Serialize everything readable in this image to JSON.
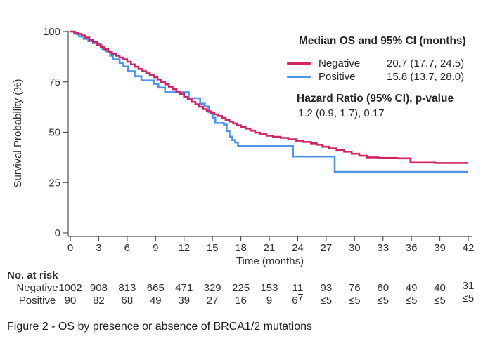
{
  "figure": {
    "caption": "Figure 2 - OS by presence or absence of BRCA1/2 mutations"
  },
  "legend": {
    "title": "Median OS and 95% CI (months)",
    "rows": [
      {
        "label": "Negative",
        "value": "20.7 (17.7, 24.5)",
        "color": "#D02466"
      },
      {
        "label": "Positive",
        "value": "15.8 (13.7, 28.0)",
        "color": "#4D95E9"
      }
    ],
    "hr_title": "Hazard Ratio (95% CI), p-value",
    "hr_value": "1.2 (0.9, 1.7), 0.17"
  },
  "risk_table": {
    "title": "No. at risk",
    "time_points": [
      0,
      3,
      6,
      9,
      12,
      15,
      18,
      21,
      24,
      27,
      30,
      33,
      36,
      39,
      42
    ],
    "rows": [
      {
        "label": "Negative",
        "values": [
          "1002",
          "908",
          "813",
          "665",
          "471",
          "329",
          "225",
          "153",
          "11",
          "93",
          "76",
          "60",
          "49",
          "40",
          "31"
        ]
      },
      {
        "label": "Positive",
        "values": [
          "90",
          "82",
          "68",
          "49",
          "39",
          "27",
          "16",
          "9",
          "67",
          "≤5",
          "≤5",
          "≤5",
          "≤5",
          "≤5",
          "≤5"
        ],
        "raised_last_digit_cell": 8
      }
    ]
  },
  "chart_data": {
    "type": "line",
    "subtype": "kaplan-meier-step",
    "title": "",
    "xlabel": "Time (months)",
    "ylabel": "Survival Probability (%)",
    "xlim": [
      0,
      42
    ],
    "ylim": [
      0,
      100
    ],
    "x_ticks": [
      0,
      3,
      6,
      9,
      12,
      15,
      18,
      21,
      24,
      27,
      30,
      33,
      36,
      39,
      42
    ],
    "y_ticks": [
      0,
      25,
      50,
      75,
      100
    ],
    "grid": false,
    "legend_position": "top-right",
    "axis_color": "#4D4D4D",
    "tick_text_color": "#303030",
    "series": [
      {
        "name": "Negative",
        "color": "#D02466",
        "median_os": "20.7 (17.7, 24.5)",
        "points": [
          [
            0,
            100
          ],
          [
            0.4,
            99.5
          ],
          [
            0.8,
            98.8
          ],
          [
            1.2,
            98.0
          ],
          [
            1.6,
            97.0
          ],
          [
            2.0,
            95.8
          ],
          [
            2.4,
            94.7
          ],
          [
            2.8,
            93.6
          ],
          [
            3.2,
            92.4
          ],
          [
            3.6,
            91.2
          ],
          [
            4.0,
            89.8
          ],
          [
            4.4,
            88.8
          ],
          [
            4.8,
            88.0
          ],
          [
            5.2,
            87.1
          ],
          [
            5.6,
            86.2
          ],
          [
            6.0,
            85.0
          ],
          [
            6.4,
            83.7
          ],
          [
            6.8,
            82.5
          ],
          [
            7.2,
            81.4
          ],
          [
            7.6,
            80.3
          ],
          [
            8.0,
            79.3
          ],
          [
            8.4,
            78.3
          ],
          [
            8.8,
            77.3
          ],
          [
            9.2,
            76.2
          ],
          [
            9.6,
            75.0
          ],
          [
            10.0,
            73.8
          ],
          [
            10.4,
            72.6
          ],
          [
            10.8,
            71.4
          ],
          [
            11.2,
            70.2
          ],
          [
            11.6,
            68.9
          ],
          [
            12.0,
            67.5
          ],
          [
            12.4,
            66.3
          ],
          [
            12.8,
            65.1
          ],
          [
            13.2,
            63.9
          ],
          [
            13.6,
            62.7
          ],
          [
            14.0,
            61.5
          ],
          [
            14.4,
            60.5
          ],
          [
            14.8,
            59.7
          ],
          [
            15.2,
            58.9
          ],
          [
            15.6,
            58.1
          ],
          [
            16.0,
            57.1
          ],
          [
            16.4,
            56.2
          ],
          [
            16.8,
            55.3
          ],
          [
            17.2,
            54.4
          ],
          [
            17.6,
            53.5
          ],
          [
            18.0,
            52.7
          ],
          [
            18.5,
            51.8
          ],
          [
            19.0,
            50.8
          ],
          [
            19.5,
            49.8
          ],
          [
            20.0,
            49.0
          ],
          [
            20.7,
            48.3
          ],
          [
            21.4,
            47.7
          ],
          [
            22.2,
            47.2
          ],
          [
            23.0,
            46.5
          ],
          [
            23.8,
            45.8
          ],
          [
            24.6,
            45.2
          ],
          [
            25.4,
            44.5
          ],
          [
            26.0,
            43.8
          ],
          [
            26.6,
            42.8
          ],
          [
            27.3,
            42.0
          ],
          [
            28.1,
            41.2
          ],
          [
            28.9,
            40.3
          ],
          [
            29.7,
            39.3
          ],
          [
            30.5,
            38.3
          ],
          [
            31.3,
            37.5
          ],
          [
            32.5,
            37.2
          ],
          [
            34.5,
            37.0
          ],
          [
            35.9,
            34.9
          ],
          [
            38.5,
            34.7
          ],
          [
            42,
            34.7
          ]
        ]
      },
      {
        "name": "Positive",
        "color": "#4D95E9",
        "median_os": "15.8 (13.7, 28.0)",
        "points": [
          [
            0,
            100
          ],
          [
            0.5,
            98.8
          ],
          [
            0.9,
            97.6
          ],
          [
            1.4,
            96.4
          ],
          [
            1.9,
            95.2
          ],
          [
            2.4,
            94.2
          ],
          [
            2.9,
            93.2
          ],
          [
            3.4,
            91.4
          ],
          [
            3.8,
            90.2
          ],
          [
            4.2,
            88.0
          ],
          [
            4.5,
            86.2
          ],
          [
            5.2,
            84.4
          ],
          [
            5.6,
            82.7
          ],
          [
            6.1,
            80.3
          ],
          [
            6.8,
            77.8
          ],
          [
            7.5,
            75.7
          ],
          [
            8.8,
            74.0
          ],
          [
            9.3,
            72.2
          ],
          [
            10.0,
            69.9
          ],
          [
            12.5,
            66.9
          ],
          [
            13.7,
            64.2
          ],
          [
            14.2,
            62.8
          ],
          [
            14.6,
            60.0
          ],
          [
            15.0,
            57.2
          ],
          [
            15.3,
            54.6
          ],
          [
            16.2,
            53.8
          ],
          [
            16.5,
            50.6
          ],
          [
            16.8,
            47.8
          ],
          [
            17.1,
            46.1
          ],
          [
            17.4,
            44.9
          ],
          [
            17.7,
            43.3
          ],
          [
            23.5,
            37.9
          ],
          [
            27.9,
            30.3
          ],
          [
            42,
            30.3
          ]
        ]
      }
    ],
    "hazard_ratio": "1.2 (0.9, 1.7), 0.17"
  }
}
